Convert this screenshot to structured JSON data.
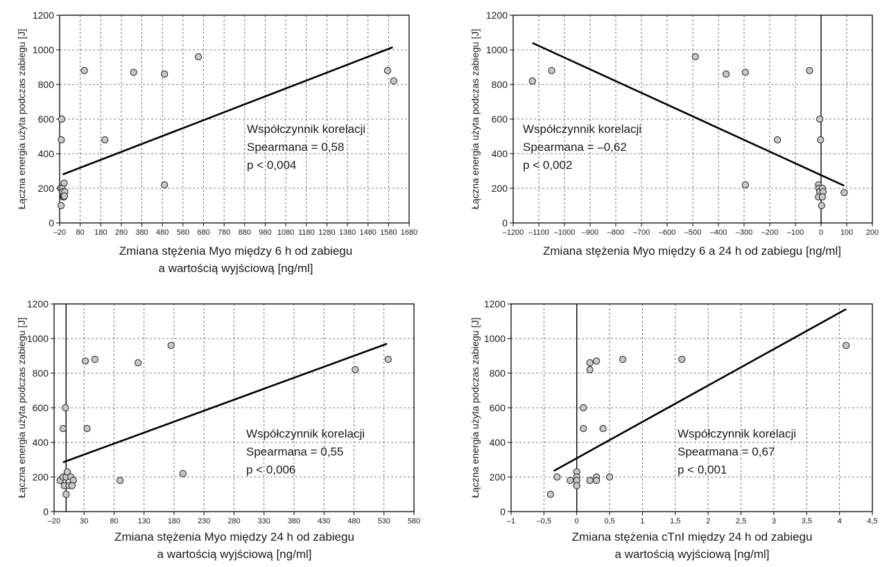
{
  "chart_data": [
    {
      "type": "scatter",
      "title": "",
      "xlabel": [
        "Zmiana stężenia Myo między 6 h od zabiegu",
        "a wartością wyjściową [ng/ml]"
      ],
      "ylabel": "Łączna energia użyta podczas zabiegu [J]",
      "xlim": [
        -20,
        1680
      ],
      "ylim": [
        0,
        1200
      ],
      "xticks": [
        -20,
        80,
        180,
        280,
        380,
        480,
        580,
        680,
        780,
        880,
        980,
        1080,
        1180,
        1280,
        1380,
        1480,
        1580,
        1680
      ],
      "xtick_labels": [
        "–20",
        "80",
        "180",
        "280",
        "380",
        "480",
        "580",
        "680",
        "780",
        "880",
        "980",
        "1080",
        "1180",
        "1280",
        "1380",
        "1480",
        "1580",
        "1680"
      ],
      "yticks": [
        0,
        200,
        400,
        600,
        800,
        1000,
        1200
      ],
      "grid": true,
      "zero_line_x": null,
      "points": [
        [
          -10,
          600
        ],
        [
          -12,
          480
        ],
        [
          -15,
          200
        ],
        [
          -8,
          200
        ],
        [
          -5,
          180
        ],
        [
          2,
          230
        ],
        [
          5,
          180
        ],
        [
          -2,
          150
        ],
        [
          0,
          150
        ],
        [
          3,
          155
        ],
        [
          -13,
          100
        ],
        [
          100,
          880
        ],
        [
          200,
          480
        ],
        [
          340,
          870
        ],
        [
          490,
          860
        ],
        [
          490,
          220
        ],
        [
          655,
          960
        ],
        [
          1575,
          880
        ],
        [
          1605,
          820
        ]
      ],
      "regression_line": [
        [
          -5,
          280
        ],
        [
          1600,
          1015
        ]
      ],
      "annotation": [
        "Współczynnik korelacji",
        "Spearmana = 0,58",
        "p < 0,004"
      ]
    },
    {
      "type": "scatter",
      "title": "",
      "xlabel": [
        "Zmiana stężenia Myo między 6 a 24 h od zabiegu  [ng/ml]"
      ],
      "ylabel": "Łączna energia użyta podczas zabiegu [J]",
      "xlim": [
        -1200,
        200
      ],
      "ylim": [
        0,
        1200
      ],
      "xticks": [
        -1200,
        -1100,
        -1000,
        -900,
        -800,
        -700,
        -600,
        -500,
        -400,
        -300,
        -200,
        -100,
        0,
        100,
        200
      ],
      "xtick_labels": [
        "–1200",
        "–1100",
        "–1000",
        "–900",
        "–800",
        "–700",
        "–600",
        "–500",
        "–400",
        "–300",
        "–200",
        "–100",
        "0",
        "100",
        "200"
      ],
      "yticks": [
        0,
        200,
        400,
        600,
        800,
        1000,
        1200
      ],
      "grid": true,
      "zero_line_x": 0,
      "points": [
        [
          -1125,
          820
        ],
        [
          -1050,
          880
        ],
        [
          -490,
          960
        ],
        [
          -370,
          860
        ],
        [
          -295,
          870
        ],
        [
          -295,
          220
        ],
        [
          -170,
          480
        ],
        [
          -45,
          880
        ],
        [
          -5,
          600
        ],
        [
          -2,
          480
        ],
        [
          -10,
          220
        ],
        [
          -8,
          200
        ],
        [
          -5,
          180
        ],
        [
          5,
          200
        ],
        [
          8,
          180
        ],
        [
          -10,
          150
        ],
        [
          5,
          150
        ],
        [
          2,
          100
        ],
        [
          90,
          175
        ]
      ],
      "regression_line": [
        [
          -1125,
          1040
        ],
        [
          90,
          215
        ]
      ],
      "annotation": [
        "Współczynnik korelacji",
        "Spearmana = –0,62",
        "p < 0,002"
      ]
    },
    {
      "type": "scatter",
      "title": "",
      "xlabel": [
        "Zmiana stężenia Myo między 24 h od zabiegu",
        "a wartością wyjściową  [ng/ml]"
      ],
      "ylabel": "Łączna energia użyta podczas zabiegu [J]",
      "xlim": [
        -20,
        580
      ],
      "ylim": [
        0,
        1200
      ],
      "xticks": [
        -20,
        30,
        80,
        130,
        180,
        230,
        280,
        330,
        380,
        430,
        480,
        530,
        580
      ],
      "xtick_labels": [
        "–20",
        "30",
        "80",
        "130",
        "180",
        "230",
        "280",
        "330",
        "380",
        "430",
        "480",
        "530",
        "580"
      ],
      "yticks": [
        0,
        200,
        400,
        600,
        800,
        1000,
        1200
      ],
      "grid": true,
      "zero_line_x": 0,
      "points": [
        [
          -1,
          600
        ],
        [
          -5,
          480
        ],
        [
          -10,
          180
        ],
        [
          -5,
          200
        ],
        [
          0,
          200
        ],
        [
          2,
          230
        ],
        [
          8,
          200
        ],
        [
          12,
          180
        ],
        [
          -3,
          150
        ],
        [
          5,
          150
        ],
        [
          10,
          150
        ],
        [
          0,
          100
        ],
        [
          32,
          870
        ],
        [
          48,
          880
        ],
        [
          35,
          480
        ],
        [
          120,
          860
        ],
        [
          175,
          960
        ],
        [
          90,
          180
        ],
        [
          195,
          220
        ],
        [
          482,
          820
        ],
        [
          537,
          880
        ]
      ],
      "regression_line": [
        [
          -5,
          285
        ],
        [
          535,
          970
        ]
      ],
      "annotation": [
        "Współczynnik korelacji",
        "Spearmana = 0,55",
        "p < 0,006"
      ]
    },
    {
      "type": "scatter",
      "title": "",
      "xlabel": [
        "Zmiana stężenia cTnI między 24 h od zabiegu",
        "a wartością wyjściową [ng/ml]"
      ],
      "ylabel": "Łączna energia użyta podczas zabiegu [J]",
      "xlim": [
        -1,
        4.5
      ],
      "ylim": [
        0,
        1200
      ],
      "xticks": [
        -1,
        -0.5,
        0,
        0.5,
        1,
        1.5,
        2,
        2.5,
        3,
        3.5,
        4,
        4.5
      ],
      "xtick_labels": [
        "–1",
        "–0,5",
        "0",
        "0,5",
        "1",
        "1,5",
        "2",
        "2,5",
        "3",
        "3,5",
        "4",
        "4,5"
      ],
      "yticks": [
        0,
        200,
        400,
        600,
        800,
        1000,
        1200
      ],
      "grid": true,
      "zero_line_x": 0,
      "points": [
        [
          -0.4,
          100
        ],
        [
          -0.3,
          200
        ],
        [
          -0.1,
          180
        ],
        [
          0,
          230
        ],
        [
          0,
          200
        ],
        [
          0,
          180
        ],
        [
          0,
          150
        ],
        [
          0.1,
          600
        ],
        [
          0.1,
          480
        ],
        [
          0.2,
          860
        ],
        [
          0.2,
          820
        ],
        [
          0.3,
          870
        ],
        [
          0.4,
          480
        ],
        [
          0.2,
          180
        ],
        [
          0.3,
          200
        ],
        [
          0.3,
          180
        ],
        [
          0.5,
          200
        ],
        [
          0.7,
          880
        ],
        [
          1.6,
          880
        ],
        [
          4.1,
          960
        ]
      ],
      "regression_line": [
        [
          -0.35,
          235
        ],
        [
          4.1,
          1170
        ]
      ],
      "annotation": [
        "Współczynnik korelacji",
        "Spearmana = 0,67",
        "p < 0,001"
      ]
    }
  ]
}
